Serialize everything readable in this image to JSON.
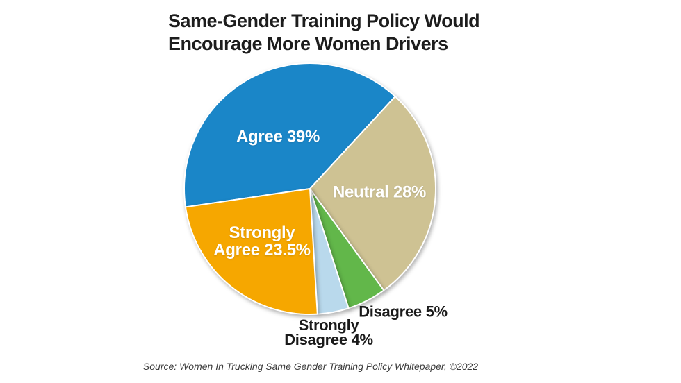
{
  "header": {
    "title_display": "Same-Gender Training Policy Would\nEncourage More Women Drivers"
  },
  "chart_data": {
    "type": "pie",
    "title": "Same-Gender Training Policy Would Encourage More Women Drivers",
    "unit": "%",
    "categories": [
      "Agree",
      "Neutral",
      "Disagree",
      "Strongly Disagree",
      "Strongly Agree"
    ],
    "values": [
      39,
      28,
      5,
      4,
      23.5
    ],
    "slices": [
      {
        "label": "Agree",
        "value": 39,
        "display": "Agree 39%",
        "color": "#1A86C8",
        "label_placement": "inside"
      },
      {
        "label": "Neutral",
        "value": 28,
        "display": "Neutral 28%",
        "color": "#CEC293",
        "label_placement": "inside"
      },
      {
        "label": "Disagree",
        "value": 5,
        "display": "Disagree 5%",
        "color": "#62B74A",
        "label_placement": "outside"
      },
      {
        "label": "Strongly Disagree",
        "value": 4,
        "display": "Strongly\nDisagree 4%",
        "color": "#B9D9EC",
        "label_placement": "outside"
      },
      {
        "label": "Strongly Agree",
        "value": 23.5,
        "display": "Strongly\nAgree 23.5%",
        "color": "#F6A700",
        "label_placement": "inside"
      }
    ],
    "start_angle_deg": 261.6,
    "clockwise": true,
    "legend": "none",
    "inside_label_color": "#FFFFFF",
    "outside_label_color": "#1A1A1A",
    "slice_gap_color": "#FFFFFF",
    "source": "Source: Women In Trucking Same Gender Training Policy Whitepaper, ©2022"
  }
}
